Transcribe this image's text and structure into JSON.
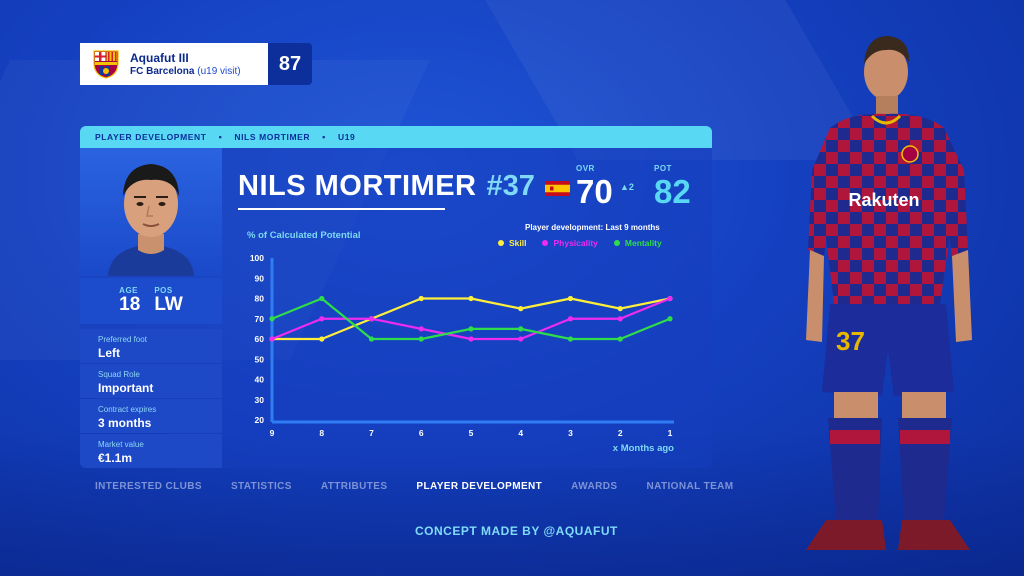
{
  "club_card": {
    "title": "Aquafut III",
    "subtitle_club": "FC Barcelona",
    "subtitle_note": "(u19 visit)",
    "rating": "87"
  },
  "breadcrumb": [
    "PLAYER DEVELOPMENT",
    "NILS MORTIMER",
    "U19"
  ],
  "player": {
    "name": "NILS MORTIMER",
    "number": "#37",
    "nationality_flag": "spain-flag-icon",
    "age_label": "AGE",
    "age": "18",
    "pos_label": "POS",
    "pos": "LW",
    "ovr_label": "OVR",
    "ovr": "70",
    "ovr_change": "▲2",
    "pot_label": "POT",
    "pot": "82",
    "info": [
      {
        "label": "Preferred foot",
        "value": "Left"
      },
      {
        "label": "Squad Role",
        "value": "Important"
      },
      {
        "label": "Contract expires",
        "value": "3 months"
      },
      {
        "label": "Market value",
        "value": "€1.1m"
      }
    ]
  },
  "chart_data": {
    "type": "line",
    "title": "% of Calculated Potential",
    "subtitle": "Player development: Last 9 months",
    "xlabel": "x Months ago",
    "x": [
      "9",
      "8",
      "7",
      "6",
      "5",
      "4",
      "3",
      "2",
      "1"
    ],
    "y_ticks": [
      "100",
      "90",
      "80",
      "70",
      "60",
      "50",
      "40",
      "30",
      "20"
    ],
    "ylim": [
      20,
      100
    ],
    "legend_position": "top-right",
    "series": [
      {
        "name": "Skill",
        "color": "#ffef3a",
        "values": [
          60,
          60,
          70,
          80,
          80,
          75,
          80,
          75,
          80
        ]
      },
      {
        "name": "Physicality",
        "color": "#ee2bf0",
        "values": [
          60,
          70,
          70,
          65,
          60,
          60,
          70,
          70,
          80
        ]
      },
      {
        "name": "Mentality",
        "color": "#2fdc4a",
        "values": [
          70,
          80,
          60,
          60,
          65,
          65,
          60,
          60,
          70
        ]
      }
    ]
  },
  "tabs": [
    {
      "label": "INTERESTED CLUBS",
      "active": false
    },
    {
      "label": "STATISTICS",
      "active": false
    },
    {
      "label": "ATTRIBUTES",
      "active": false
    },
    {
      "label": "PLAYER DEVELOPMENT",
      "active": true
    },
    {
      "label": "AWARDS",
      "active": false
    },
    {
      "label": "NATIONAL TEAM",
      "active": false
    }
  ],
  "credit": "CONCEPT MADE BY @AQUAFUT",
  "colors": {
    "background": "#1440c0",
    "accent": "#58d8f2",
    "panel": "#163ebe"
  }
}
